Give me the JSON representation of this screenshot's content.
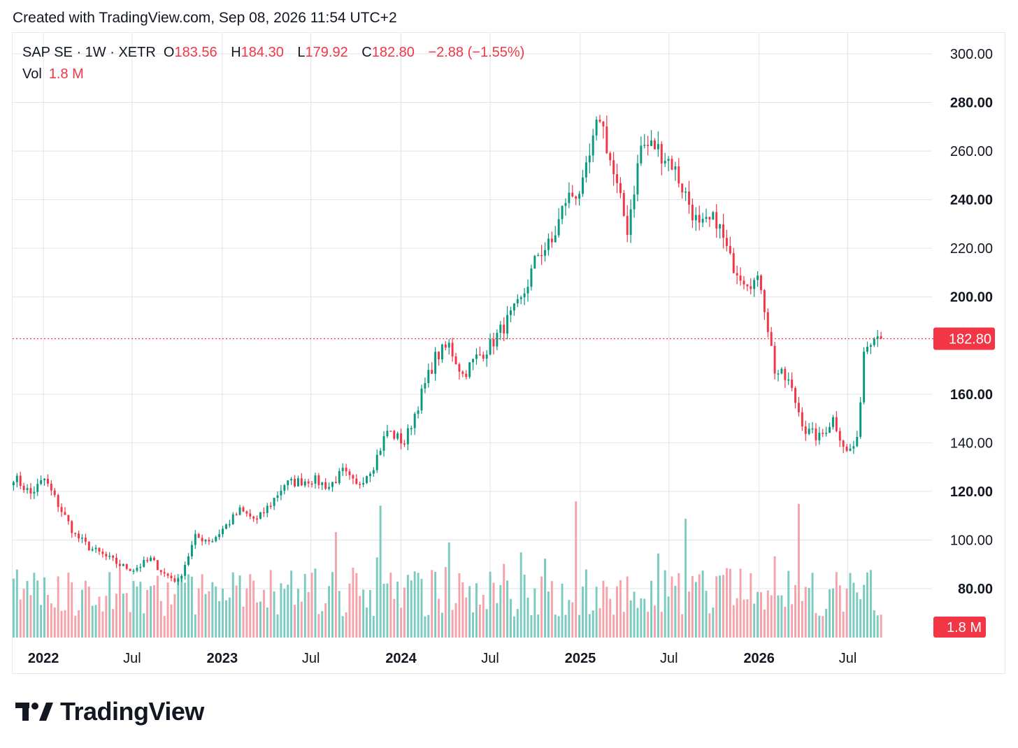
{
  "header": {
    "created_text": "Created with TradingView.com, Sep 08, 2026 11:54 UTC+2"
  },
  "legend": {
    "symbol": "SAP SE · 1W · XETR",
    "open_label": "O",
    "open": "183.56",
    "high_label": "H",
    "high": "184.30",
    "low_label": "L",
    "low": "179.92",
    "close_label": "C",
    "close": "182.80",
    "change": "−2.88 (−1.55%)",
    "volume_label": "Vol",
    "volume": "1.8 M"
  },
  "brand": {
    "name": "TradingView"
  },
  "colors": {
    "up": "#089981",
    "down": "#f23645",
    "up_volume": "#7ccbc0",
    "down_volume": "#f5a3aa",
    "grid": "#e0e3eb",
    "text": "#131722"
  },
  "chart_data": {
    "type": "candlestick",
    "x_ticks": [
      {
        "label": "2022",
        "date": "2022-01-01",
        "bold": true
      },
      {
        "label": "Jul",
        "date": "2022-07-01",
        "bold": false
      },
      {
        "label": "2023",
        "date": "2023-01-01",
        "bold": true
      },
      {
        "label": "Jul",
        "date": "2023-07-01",
        "bold": false
      },
      {
        "label": "2024",
        "date": "2024-01-01",
        "bold": true
      },
      {
        "label": "Jul",
        "date": "2024-07-01",
        "bold": false
      },
      {
        "label": "2025",
        "date": "2025-01-01",
        "bold": true
      },
      {
        "label": "Jul",
        "date": "2025-07-01",
        "bold": false
      },
      {
        "label": "2026",
        "date": "2026-01-01",
        "bold": true
      },
      {
        "label": "Jul",
        "date": "2026-07-01",
        "bold": false
      }
    ],
    "y_ticks": [
      {
        "label": "300.00",
        "value": 300,
        "bold": false
      },
      {
        "label": "280.00",
        "value": 280,
        "bold": true
      },
      {
        "label": "260.00",
        "value": 260,
        "bold": false
      },
      {
        "label": "240.00",
        "value": 240,
        "bold": true
      },
      {
        "label": "220.00",
        "value": 220,
        "bold": false
      },
      {
        "label": "200.00",
        "value": 200,
        "bold": true
      },
      {
        "label": "160.00",
        "value": 160,
        "bold": true
      },
      {
        "label": "140.00",
        "value": 140,
        "bold": false
      },
      {
        "label": "120.00",
        "value": 120,
        "bold": true
      },
      {
        "label": "100.00",
        "value": 100,
        "bold": false
      },
      {
        "label": "80.00",
        "value": 80,
        "bold": true
      }
    ],
    "price_axis_range": [
      80,
      300
    ],
    "last_price": {
      "value": 182.8,
      "label": "182.80"
    },
    "last_volume": {
      "label": "1.8 M"
    },
    "x_range": [
      "2021-10-30",
      "2026-12-20"
    ],
    "waypoints": [
      [
        "2021-11-01",
        126
      ],
      [
        "2021-12-06",
        119
      ],
      [
        "2022-01-03",
        125
      ],
      [
        "2022-02-07",
        112
      ],
      [
        "2022-03-07",
        102
      ],
      [
        "2022-04-04",
        97
      ],
      [
        "2022-05-09",
        93
      ],
      [
        "2022-06-13",
        89
      ],
      [
        "2022-07-04",
        88
      ],
      [
        "2022-08-08",
        92
      ],
      [
        "2022-09-05",
        86
      ],
      [
        "2022-10-03",
        83
      ],
      [
        "2022-11-07",
        101
      ],
      [
        "2022-12-12",
        100
      ],
      [
        "2023-01-09",
        106
      ],
      [
        "2023-02-06",
        112
      ],
      [
        "2023-03-13",
        108
      ],
      [
        "2023-04-10",
        115
      ],
      [
        "2023-05-08",
        123
      ],
      [
        "2023-06-05",
        124
      ],
      [
        "2023-07-03",
        125
      ],
      [
        "2023-08-07",
        122
      ],
      [
        "2023-09-04",
        128
      ],
      [
        "2023-10-02",
        122
      ],
      [
        "2023-11-06",
        131
      ],
      [
        "2023-12-04",
        145
      ],
      [
        "2024-01-08",
        140
      ],
      [
        "2024-02-12",
        160
      ],
      [
        "2024-03-11",
        175
      ],
      [
        "2024-04-08",
        180
      ],
      [
        "2024-05-06",
        168
      ],
      [
        "2024-06-03",
        175
      ],
      [
        "2024-07-01",
        180
      ],
      [
        "2024-08-05",
        190
      ],
      [
        "2024-09-02",
        198
      ],
      [
        "2024-10-07",
        218
      ],
      [
        "2024-11-04",
        222
      ],
      [
        "2024-12-02",
        240
      ],
      [
        "2025-01-06",
        245
      ],
      [
        "2025-02-10",
        275
      ],
      [
        "2025-03-10",
        250
      ],
      [
        "2025-04-07",
        228
      ],
      [
        "2025-05-05",
        262
      ],
      [
        "2025-06-02",
        262
      ],
      [
        "2025-07-07",
        255
      ],
      [
        "2025-08-04",
        242
      ],
      [
        "2025-09-01",
        228
      ],
      [
        "2025-10-06",
        232
      ],
      [
        "2025-11-03",
        215
      ],
      [
        "2025-12-01",
        208
      ],
      [
        "2026-01-05",
        205
      ],
      [
        "2026-02-02",
        170
      ],
      [
        "2026-03-02",
        165
      ],
      [
        "2026-04-06",
        145
      ],
      [
        "2026-05-04",
        142
      ],
      [
        "2026-06-01",
        150
      ],
      [
        "2026-06-29",
        136
      ],
      [
        "2026-07-20",
        140
      ],
      [
        "2026-08-03",
        178
      ],
      [
        "2026-08-24",
        186
      ],
      [
        "2026-09-07",
        182.8
      ]
    ]
  }
}
